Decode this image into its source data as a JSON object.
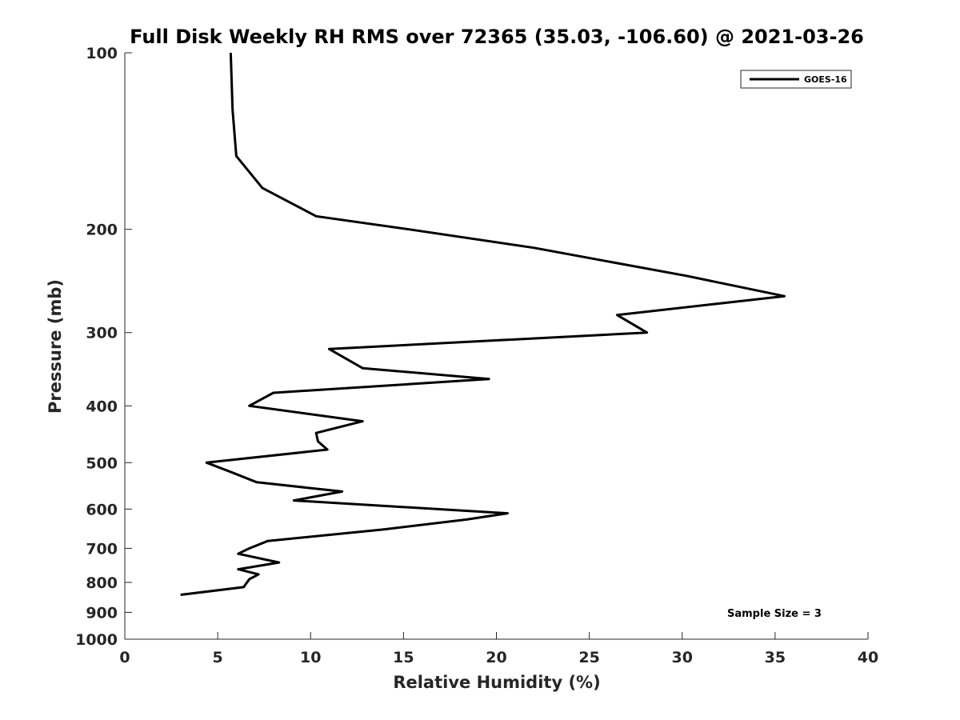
{
  "chart_data": {
    "type": "line",
    "title": "Full Disk Weekly RH RMS over 72365 (35.03, -106.60) @ 2021-03-26",
    "xlabel": "Relative Humidity (%)",
    "ylabel": "Pressure (mb)",
    "xlim": [
      0,
      40
    ],
    "ylim": [
      100,
      1000
    ],
    "y_scale": "log",
    "y_reversed": true,
    "xticks": [
      0,
      5,
      10,
      15,
      20,
      25,
      30,
      35,
      40
    ],
    "yticks": [
      100,
      200,
      300,
      400,
      500,
      600,
      700,
      800,
      900,
      1000
    ],
    "grid": false,
    "legend": "top-right",
    "annotation": "Sample Size = 3",
    "series": [
      {
        "name": "GOES-16",
        "color": "#000000",
        "points": [
          {
            "x": 5.7,
            "y": 100
          },
          {
            "x": 5.8,
            "y": 125
          },
          {
            "x": 6.0,
            "y": 150
          },
          {
            "x": 7.4,
            "y": 170
          },
          {
            "x": 10.3,
            "y": 190
          },
          {
            "x": 15.3,
            "y": 200
          },
          {
            "x": 22.0,
            "y": 215
          },
          {
            "x": 30.2,
            "y": 240
          },
          {
            "x": 35.5,
            "y": 260
          },
          {
            "x": 26.5,
            "y": 280
          },
          {
            "x": 28.1,
            "y": 300
          },
          {
            "x": 11.0,
            "y": 320
          },
          {
            "x": 12.8,
            "y": 345
          },
          {
            "x": 19.6,
            "y": 360
          },
          {
            "x": 8.0,
            "y": 380
          },
          {
            "x": 6.7,
            "y": 400
          },
          {
            "x": 12.8,
            "y": 425
          },
          {
            "x": 10.3,
            "y": 445
          },
          {
            "x": 10.4,
            "y": 460
          },
          {
            "x": 10.9,
            "y": 475
          },
          {
            "x": 4.4,
            "y": 500
          },
          {
            "x": 5.8,
            "y": 520
          },
          {
            "x": 7.1,
            "y": 540
          },
          {
            "x": 11.7,
            "y": 560
          },
          {
            "x": 9.1,
            "y": 580
          },
          {
            "x": 20.6,
            "y": 610
          },
          {
            "x": 18.4,
            "y": 625
          },
          {
            "x": 13.9,
            "y": 650
          },
          {
            "x": 7.7,
            "y": 680
          },
          {
            "x": 6.7,
            "y": 700
          },
          {
            "x": 6.1,
            "y": 715
          },
          {
            "x": 8.3,
            "y": 740
          },
          {
            "x": 6.1,
            "y": 760
          },
          {
            "x": 7.2,
            "y": 775
          },
          {
            "x": 6.7,
            "y": 790
          },
          {
            "x": 6.4,
            "y": 815
          },
          {
            "x": 3.0,
            "y": 840
          }
        ]
      }
    ]
  }
}
